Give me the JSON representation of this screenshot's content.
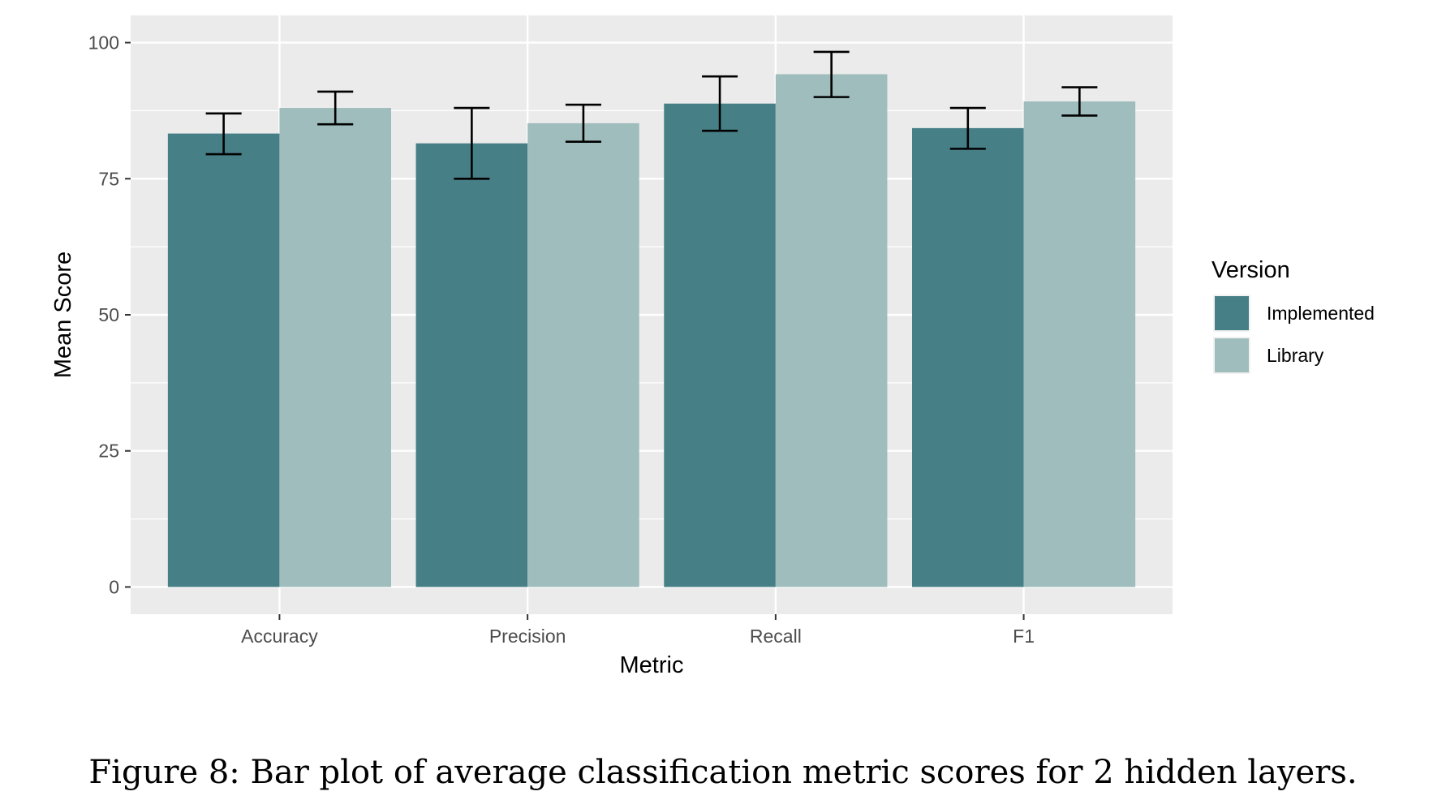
{
  "chart_data": {
    "type": "bar",
    "categories": [
      "Accuracy",
      "Precision",
      "Recall",
      "F1"
    ],
    "series": [
      {
        "name": "Implemented",
        "values": [
          83.3,
          81.5,
          88.8,
          84.3
        ],
        "error_low": [
          79.5,
          75.0,
          83.8,
          80.5
        ],
        "error_high": [
          87.0,
          88.0,
          93.8,
          88.0
        ],
        "color": "#477f87"
      },
      {
        "name": "Library",
        "values": [
          88.0,
          85.2,
          94.2,
          89.2
        ],
        "error_low": [
          85.0,
          81.8,
          90.0,
          86.6
        ],
        "error_high": [
          91.0,
          88.6,
          98.3,
          91.8
        ],
        "color": "#9fbdbc"
      }
    ],
    "ylim": [
      -5,
      105
    ],
    "yticks": [
      0,
      25,
      50,
      75,
      100
    ],
    "ytick_labels": [
      "0",
      "25",
      "50",
      "75",
      "100"
    ],
    "xlabel": "Metric",
    "ylabel": "Mean Score",
    "legend": {
      "title": "Version",
      "placement": "right"
    },
    "grid": true,
    "panel_color": "#ebebeb"
  },
  "caption": "Figure 8: Bar plot of average classification metric scores for 2 hidden layers."
}
